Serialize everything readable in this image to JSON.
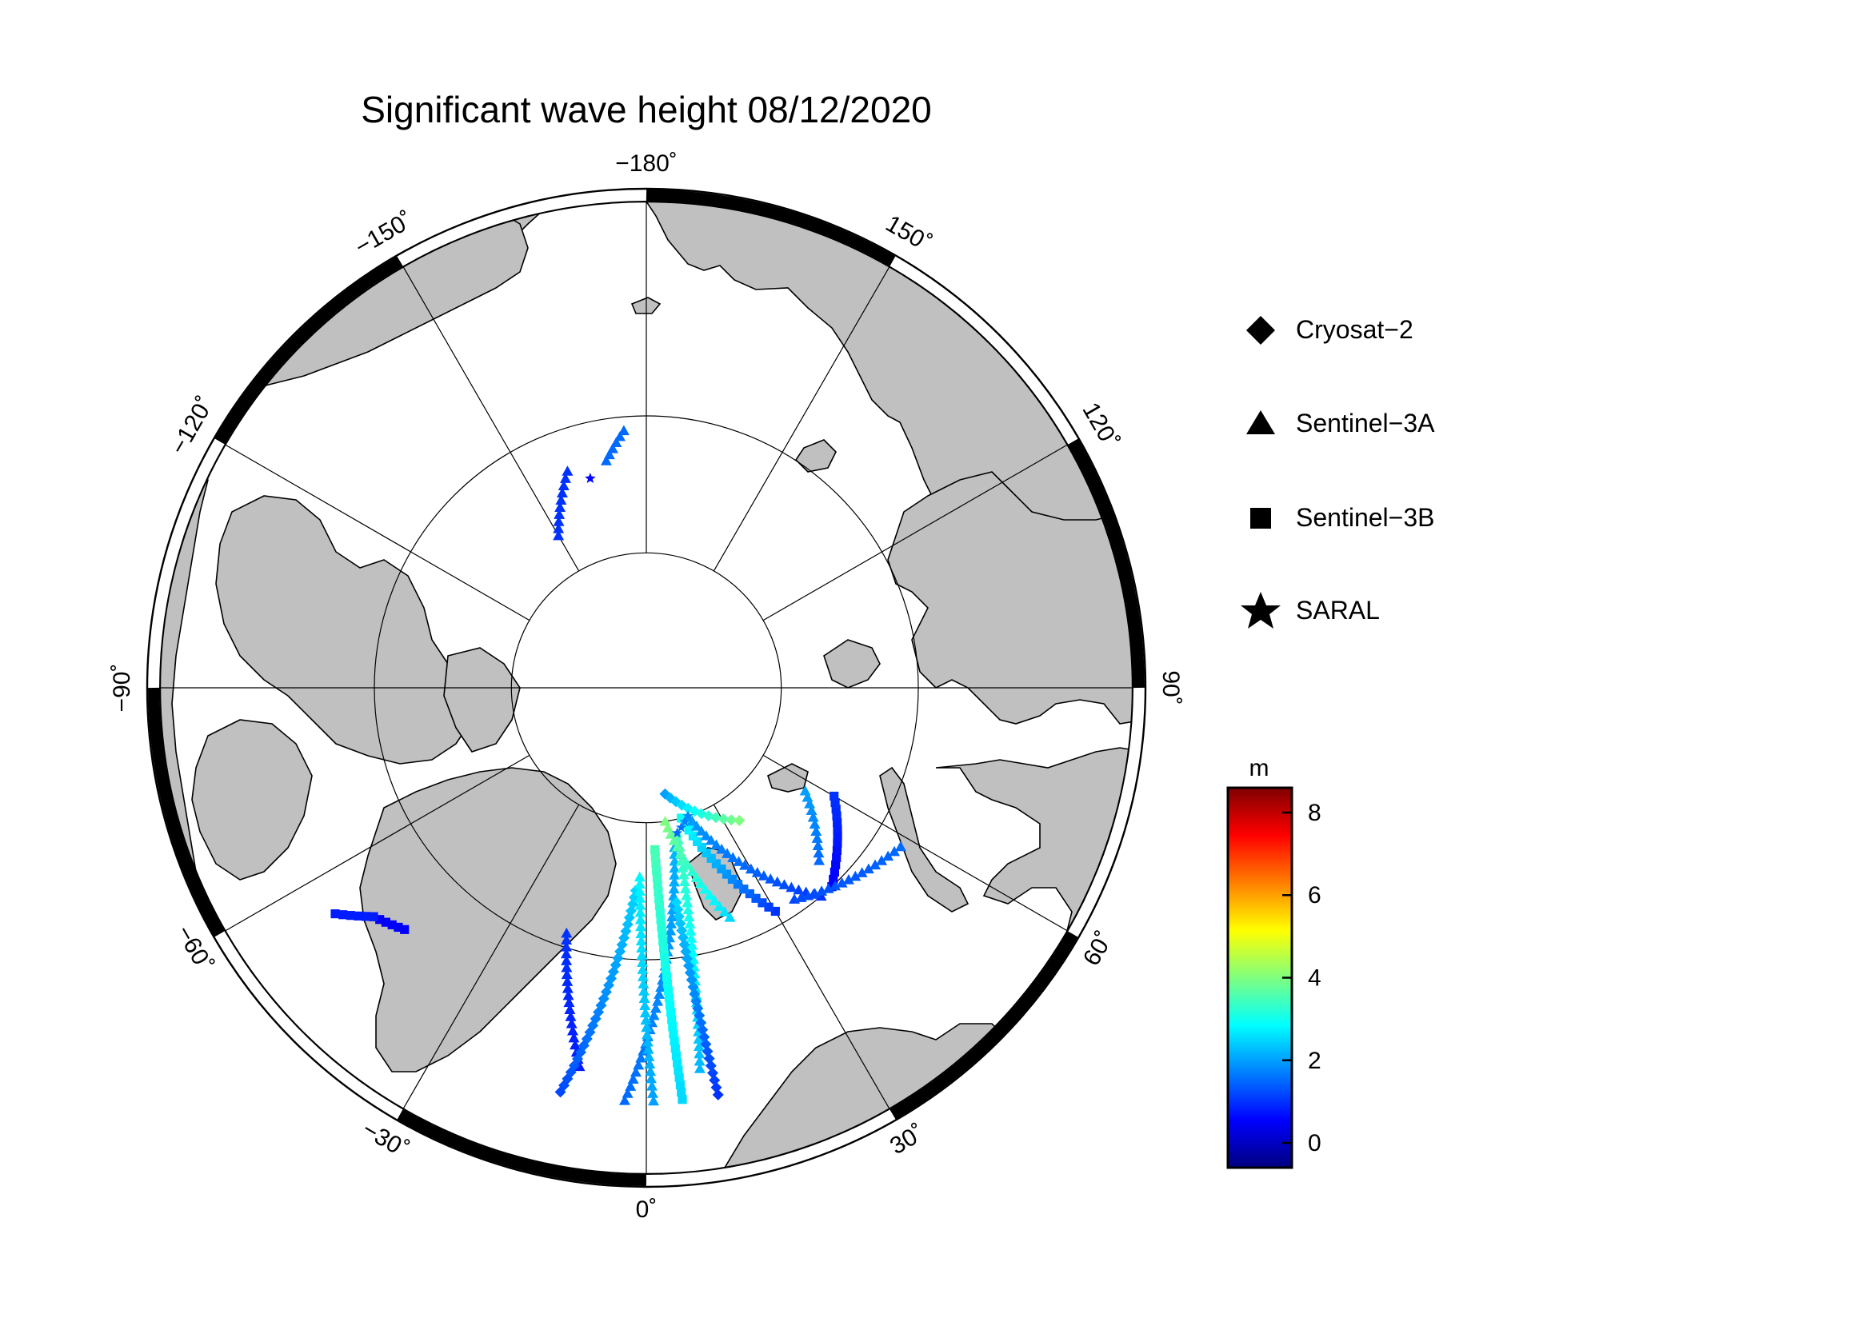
{
  "title": "Significant wave height 08/12/2020",
  "frame": {
    "lon_labels": [
      {
        "lon": -180,
        "text": "−180˚"
      },
      {
        "lon": 150,
        "text": "150˚"
      },
      {
        "lon": 120,
        "text": "120˚"
      },
      {
        "lon": 90,
        "text": "90˚"
      },
      {
        "lon": 60,
        "text": "60˚"
      },
      {
        "lon": 30,
        "text": "30˚"
      },
      {
        "lon": 0,
        "text": "0˚"
      },
      {
        "lon": -30,
        "text": "−30˚"
      },
      {
        "lon": -60,
        "text": "−60˚"
      },
      {
        "lon": -90,
        "text": "−90˚"
      },
      {
        "lon": -120,
        "text": "−120˚"
      },
      {
        "lon": -150,
        "text": "−150˚"
      }
    ]
  },
  "legend": {
    "items": [
      {
        "symbol": "diamond",
        "label": "Cryosat−2"
      },
      {
        "symbol": "triangle",
        "label": "Sentinel−3A"
      },
      {
        "symbol": "square",
        "label": "Sentinel−3B"
      },
      {
        "symbol": "star",
        "label": "SARAL"
      }
    ]
  },
  "colorbar": {
    "unit": "m",
    "range": [
      -0.6,
      8.6
    ],
    "ticks": [
      {
        "value": 0,
        "text": "0"
      },
      {
        "value": 2,
        "text": "2"
      },
      {
        "value": 4,
        "text": "4"
      },
      {
        "value": 6,
        "text": "6"
      },
      {
        "value": 8,
        "text": "8"
      }
    ]
  },
  "colors": {
    "land": "#c0c0c0",
    "ocean": "#ffffff",
    "jet": [
      "#00007f",
      "#0000ff",
      "#007fff",
      "#00ffff",
      "#7fff7f",
      "#ffff00",
      "#ff7f00",
      "#ff0000",
      "#7f0000"
    ]
  },
  "chart_data": {
    "type": "scatter",
    "title": "Significant wave height 08/12/2020",
    "projection": "north polar stereographic",
    "value_unit": "m",
    "tracks": [
      {
        "mission": "Sentinel-3A",
        "symbol": "triangle",
        "from": [
          -160,
          73
        ],
        "to": [
          -150,
          77
        ],
        "swh": [
          1.0,
          1.0
        ]
      },
      {
        "mission": "Sentinel-3A",
        "symbol": "triangle",
        "from": [
          -175,
          71
        ],
        "to": [
          -170,
          73
        ],
        "swh": [
          1.5,
          1.5
        ]
      },
      {
        "mission": "SARAL",
        "symbol": "star",
        "from": [
          -165,
          74
        ],
        "to": [
          -165,
          74
        ],
        "swh": [
          0.6,
          0.6
        ]
      },
      {
        "mission": "Sentinel-3B",
        "symbol": "square",
        "from": [
          -50,
          64
        ],
        "to": [
          -45,
          65
        ],
        "swh": [
          0.5,
          0.5
        ]
      },
      {
        "mission": "Sentinel-3B",
        "symbol": "square",
        "from": [
          -54,
          62
        ],
        "to": [
          -50,
          64
        ],
        "swh": [
          0.8,
          0.8
        ]
      },
      {
        "mission": "Sentinel-3A",
        "symbol": "triangle",
        "from": [
          -10,
          62
        ],
        "to": [
          -18,
          71
        ],
        "swh": [
          0.8,
          1.0
        ]
      },
      {
        "mission": "Cryosat-2",
        "symbol": "diamond",
        "from": [
          -12,
          60
        ],
        "to": [
          -3,
          75
        ],
        "swh": [
          1.2,
          2.5
        ]
      },
      {
        "mission": "Sentinel-3A",
        "symbol": "triangle",
        "from": [
          -3,
          60
        ],
        "to": [
          10,
          78
        ],
        "swh": [
          1.5,
          2.2
        ]
      },
      {
        "mission": "Sentinel-3A",
        "symbol": "triangle",
        "from": [
          1,
          60
        ],
        "to": [
          -2,
          76
        ],
        "swh": [
          2.0,
          2.8
        ]
      },
      {
        "mission": "Sentinel-3B",
        "symbol": "square",
        "from": [
          5,
          60
        ],
        "to": [
          3,
          78
        ],
        "swh": [
          2.5,
          3.5
        ]
      },
      {
        "mission": "Sentinel-3A",
        "symbol": "triangle",
        "from": [
          8,
          62
        ],
        "to": [
          12,
          79
        ],
        "swh": [
          2.2,
          3.5
        ]
      },
      {
        "mission": "Cryosat-2",
        "symbol": "diamond",
        "from": [
          10,
          60
        ],
        "to": [
          8,
          74
        ],
        "swh": [
          1.0,
          2.5
        ]
      },
      {
        "mission": "Sentinel-3A",
        "symbol": "triangle",
        "from": [
          20,
          72
        ],
        "to": [
          8,
          80
        ],
        "swh": [
          2.5,
          4.0
        ]
      },
      {
        "mission": "Sentinel-3B",
        "symbol": "square",
        "from": [
          30,
          71
        ],
        "to": [
          15,
          80
        ],
        "swh": [
          1.0,
          3.0
        ]
      },
      {
        "mission": "Sentinel-3A",
        "symbol": "triangle",
        "from": [
          40,
          70
        ],
        "to": [
          18,
          80
        ],
        "swh": [
          1.0,
          2.0
        ]
      },
      {
        "mission": "Sentinel-3B",
        "symbol": "square",
        "from": [
          43,
          70
        ],
        "to": [
          60,
          74
        ],
        "swh": [
          0.5,
          1.0
        ]
      },
      {
        "mission": "Sentinel-3A",
        "symbol": "triangle",
        "from": [
          45,
          72
        ],
        "to": [
          57,
          76
        ],
        "swh": [
          1.5,
          2.0
        ]
      },
      {
        "mission": "Sentinel-3A",
        "symbol": "triangle",
        "from": [
          35,
          71
        ],
        "to": [
          58,
          68
        ],
        "swh": [
          1.2,
          1.5
        ]
      },
      {
        "mission": "Cryosat-2",
        "symbol": "diamond",
        "from": [
          10,
          82
        ],
        "to": [
          35,
          78
        ],
        "swh": [
          2.0,
          4.0
        ]
      },
      {
        "mission": "SARAL",
        "symbol": "star",
        "from": [
          12,
          79
        ],
        "to": [
          18,
          80
        ],
        "swh": [
          1.5,
          1.8
        ]
      }
    ]
  }
}
